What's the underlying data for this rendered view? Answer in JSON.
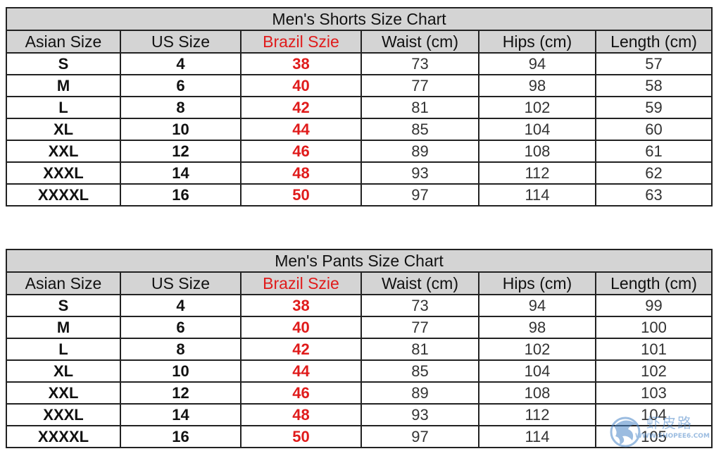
{
  "shorts": {
    "title": "Men's Shorts Size Chart",
    "headers": [
      "Asian Size",
      "US Size",
      "Brazil Szie",
      "Waist (cm)",
      "Hips (cm)",
      "Length (cm)"
    ],
    "rows": [
      [
        "S",
        "4",
        "38",
        "73",
        "94",
        "57"
      ],
      [
        "M",
        "6",
        "40",
        "77",
        "98",
        "58"
      ],
      [
        "L",
        "8",
        "42",
        "81",
        "102",
        "59"
      ],
      [
        "XL",
        "10",
        "44",
        "85",
        "104",
        "60"
      ],
      [
        "XXL",
        "12",
        "46",
        "89",
        "108",
        "61"
      ],
      [
        "XXXL",
        "14",
        "48",
        "93",
        "112",
        "62"
      ],
      [
        "XXXXL",
        "16",
        "50",
        "97",
        "114",
        "63"
      ]
    ]
  },
  "pants": {
    "title": "Men's Pants Size Chart",
    "headers": [
      "Asian Size",
      "US Size",
      "Brazil Szie",
      "Waist (cm)",
      "Hips (cm)",
      "Length (cm)"
    ],
    "rows": [
      [
        "S",
        "4",
        "38",
        "73",
        "94",
        "99"
      ],
      [
        "M",
        "6",
        "40",
        "77",
        "98",
        "100"
      ],
      [
        "L",
        "8",
        "42",
        "81",
        "102",
        "101"
      ],
      [
        "XL",
        "10",
        "44",
        "85",
        "104",
        "102"
      ],
      [
        "XXL",
        "12",
        "46",
        "89",
        "108",
        "103"
      ],
      [
        "XXXL",
        "14",
        "48",
        "93",
        "112",
        "104"
      ],
      [
        "XXXXL",
        "16",
        "50",
        "97",
        "114",
        "105"
      ]
    ]
  },
  "watermark": {
    "text": "虾皮路",
    "url": "WWW.SHOPEE6.COM",
    "icon": "dragon-logo-icon"
  },
  "colors": {
    "header_bg": "#d4d4d4",
    "brazil_red": "#e01b1b",
    "border": "#222222",
    "watermark_blue": "#4a86c8"
  }
}
